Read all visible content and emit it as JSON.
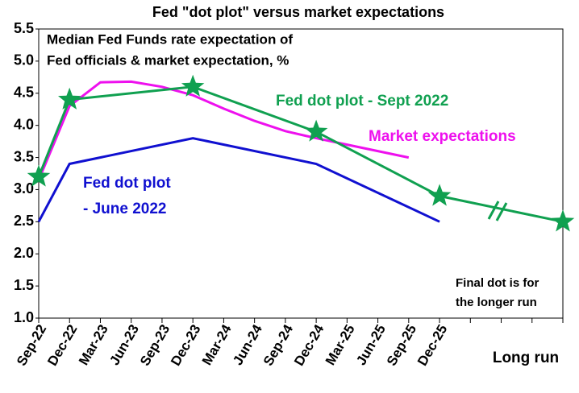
{
  "chart_data": {
    "type": "line",
    "title": "Fed \"dot plot\" versus market expectations",
    "subtitle": [
      "Median Fed Funds rate expectation of",
      "Fed officials & market expectation, %"
    ],
    "categories": [
      "Sep-22",
      "Dec-22",
      "Mar-23",
      "Jun-23",
      "Sep-23",
      "Dec-23",
      "Mar-24",
      "Jun-24",
      "Sep-24",
      "Dec-24",
      "Mar-25",
      "Jun-25",
      "Sep-25",
      "Dec-25",
      null,
      null,
      null,
      "Long run"
    ],
    "ylim": [
      1,
      5.5
    ],
    "yticks": [
      {
        "value": 1,
        "label": "1.0"
      },
      1.5,
      {
        "value": 2,
        "label": "2.0"
      },
      2.5,
      {
        "value": 3,
        "label": "3.0"
      },
      3.5,
      {
        "value": 4,
        "label": "4.0"
      },
      4.5,
      {
        "value": 5,
        "label": "5.0"
      },
      5.5
    ],
    "grid": false,
    "series": [
      {
        "name": [
          "Fed dot plot",
          "- June 2022"
        ],
        "color": "#1010d0",
        "marker": "none",
        "x": [
          "Sep-22",
          "Dec-22",
          "Dec-23",
          "Dec-24",
          "Dec-25"
        ],
        "values": [
          2.5,
          3.4,
          3.8,
          3.4,
          2.5
        ]
      },
      {
        "name": [
          "Market expectations"
        ],
        "color": "#ee10ee",
        "marker": "none",
        "x": [
          "Sep-22",
          "Dec-22",
          "Mar-23",
          "Jun-23",
          "Sep-23",
          "Dec-23",
          "Mar-24",
          "Jun-24",
          "Sep-24",
          "Dec-24",
          "Mar-25",
          "Jun-25",
          "Sep-25"
        ],
        "values": [
          3.15,
          4.3,
          4.67,
          4.68,
          4.6,
          4.47,
          4.26,
          4.07,
          3.91,
          3.8,
          3.7,
          3.6,
          3.5
        ]
      },
      {
        "name": [
          "Fed dot plot - Sept 2022"
        ],
        "color": "#10a050",
        "marker": "star",
        "x": [
          "Sep-22",
          "Dec-22",
          "Dec-23",
          "Dec-24",
          "Dec-25",
          "Long run"
        ],
        "values": [
          3.2,
          4.4,
          4.6,
          3.9,
          2.9,
          2.5
        ]
      }
    ],
    "annotation": [
      "Final dot is for",
      "the longer run"
    ]
  }
}
